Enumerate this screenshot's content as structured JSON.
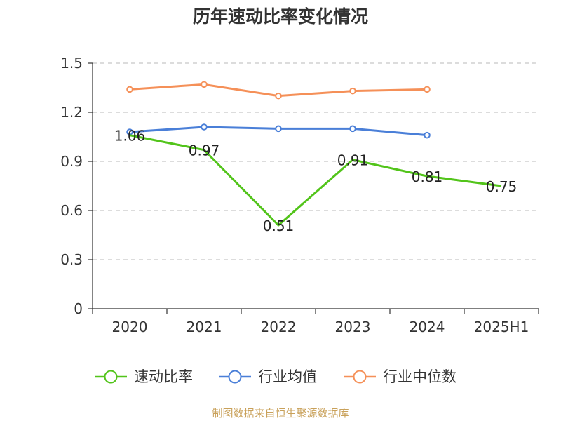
{
  "chart_data": {
    "type": "line",
    "title": "历年速动比率变化情况",
    "categories": [
      "2020",
      "2021",
      "2022",
      "2023",
      "2024",
      "2025H1"
    ],
    "ylim": [
      0,
      1.5
    ],
    "yticks": [
      "0",
      "0.3",
      "0.6",
      "0.9",
      "1.2",
      "1.5"
    ],
    "ytick_values": [
      0,
      0.3,
      0.6,
      0.9,
      1.2,
      1.5
    ],
    "grid": true,
    "legend_position": "bottom",
    "series": [
      {
        "name": "速动比率",
        "color": "#52c41a",
        "values": [
          1.06,
          0.97,
          0.51,
          0.91,
          0.81,
          0.75
        ],
        "labels": [
          "1.06",
          "0.97",
          "0.51",
          "0.91",
          "0.81",
          "0.75"
        ],
        "show_labels": true,
        "show_markers": false
      },
      {
        "name": "行业均值",
        "color": "#4a7fd8",
        "values": [
          1.08,
          1.11,
          1.1,
          1.1,
          1.06,
          null
        ],
        "show_labels": false,
        "show_markers": true
      },
      {
        "name": "行业中位数",
        "color": "#f59058",
        "values": [
          1.34,
          1.37,
          1.3,
          1.33,
          1.34,
          null
        ],
        "show_labels": false,
        "show_markers": true
      }
    ],
    "source": "制图数据来自恒生聚源数据库"
  }
}
